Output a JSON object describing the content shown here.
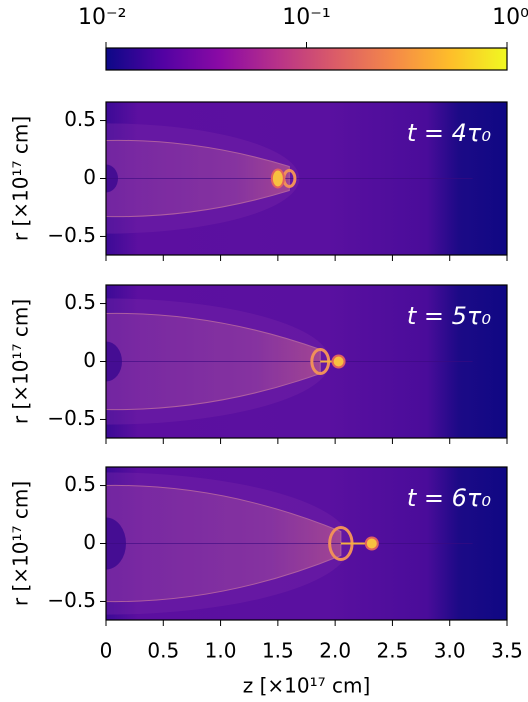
{
  "colorbar": {
    "scale": "log",
    "lim": [
      0.01,
      1
    ],
    "ticks": [
      {
        "value": 0.01,
        "label": "10⁻²"
      },
      {
        "value": 0.1,
        "label": "10⁻¹"
      },
      {
        "value": 1,
        "label": "10⁰"
      }
    ],
    "colors": [
      "#0d0887",
      "#5302a3",
      "#8b0aa5",
      "#b83289",
      "#db5c68",
      "#f48849",
      "#febd2a",
      "#f0f921"
    ]
  },
  "chart_data": [
    {
      "type": "image",
      "annotation": "t = 4τ₀",
      "ylabel": "r [×10¹⁷ cm]",
      "xlim": [
        0,
        3.5
      ],
      "ylim": [
        -0.66,
        0.66
      ],
      "yticks": [
        {
          "value": 0.5,
          "label": "0.5"
        },
        0,
        {
          "value": -0.5,
          "label": "−0.5"
        }
      ],
      "xticks": [
        0,
        0.5,
        1,
        1.5,
        2,
        2.5,
        3,
        3.5
      ]
    },
    {
      "type": "image",
      "annotation": "t = 5τ₀",
      "ylabel": "r [×10¹⁷ cm]",
      "xlim": [
        0,
        3.5
      ],
      "ylim": [
        -0.66,
        0.66
      ],
      "yticks": [
        {
          "value": 0.5,
          "label": "0.5"
        },
        0,
        {
          "value": -0.5,
          "label": "−0.5"
        }
      ],
      "xticks": [
        0,
        0.5,
        1,
        1.5,
        2,
        2.5,
        3,
        3.5
      ]
    },
    {
      "type": "image",
      "annotation": "t = 6τ₀",
      "ylabel": "r [×10¹⁷ cm]",
      "xlabel": "z [×10¹⁷ cm]",
      "xlim": [
        0,
        3.5
      ],
      "ylim": [
        -0.66,
        0.66
      ],
      "yticks": [
        {
          "value": 0.5,
          "label": "0.5"
        },
        0,
        {
          "value": -0.5,
          "label": "−0.5"
        }
      ],
      "xticks": [
        0,
        0.5,
        {
          "value": 1,
          "label": "1.0"
        },
        1.5,
        {
          "value": 2,
          "label": "2.0"
        },
        2.5,
        {
          "value": 3,
          "label": "3.0"
        },
        3.5
      ]
    }
  ]
}
